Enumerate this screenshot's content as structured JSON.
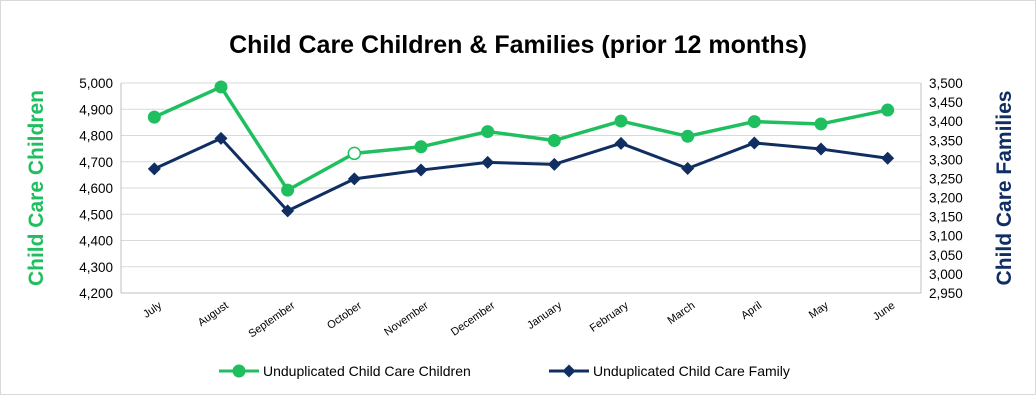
{
  "chart_data": {
    "type": "line",
    "title": "Child Care Children & Families (prior 12 months)",
    "categories": [
      "July",
      "August",
      "September",
      "October",
      "November",
      "December",
      "January",
      "February",
      "March",
      "April",
      "May",
      "June"
    ],
    "series": [
      {
        "name": "Unduplicated Child Care Children",
        "axis": "left",
        "color": "#1fbf5f",
        "marker": "circle",
        "values": [
          4870,
          4985,
          4592,
          4732,
          4757,
          4815,
          4781,
          4855,
          4797,
          4853,
          4844,
          4897
        ]
      },
      {
        "name": "Unduplicated Child Care Family",
        "axis": "right",
        "color": "#112e63",
        "marker": "diamond",
        "values": [
          3275,
          3355,
          3165,
          3249,
          3272,
          3292,
          3287,
          3342,
          3276,
          3343,
          3327,
          3303
        ]
      }
    ],
    "left_axis": {
      "label": "Child Care Children",
      "color": "#1fbf5f",
      "min": 4200,
      "max": 5000,
      "step": 100,
      "tick_labels": [
        "4,200",
        "4,300",
        "4,400",
        "4,500",
        "4,600",
        "4,700",
        "4,800",
        "4,900",
        "5,000"
      ]
    },
    "right_axis": {
      "label": "Child Care Families",
      "color": "#112e63",
      "min": 2950,
      "max": 3500,
      "step": 50,
      "tick_labels": [
        "2,950",
        "3,000",
        "3,050",
        "3,100",
        "3,150",
        "3,200",
        "3,250",
        "3,300",
        "3,350",
        "3,400",
        "3,450",
        "3,500"
      ]
    },
    "grid": true,
    "legend_position": "bottom"
  }
}
